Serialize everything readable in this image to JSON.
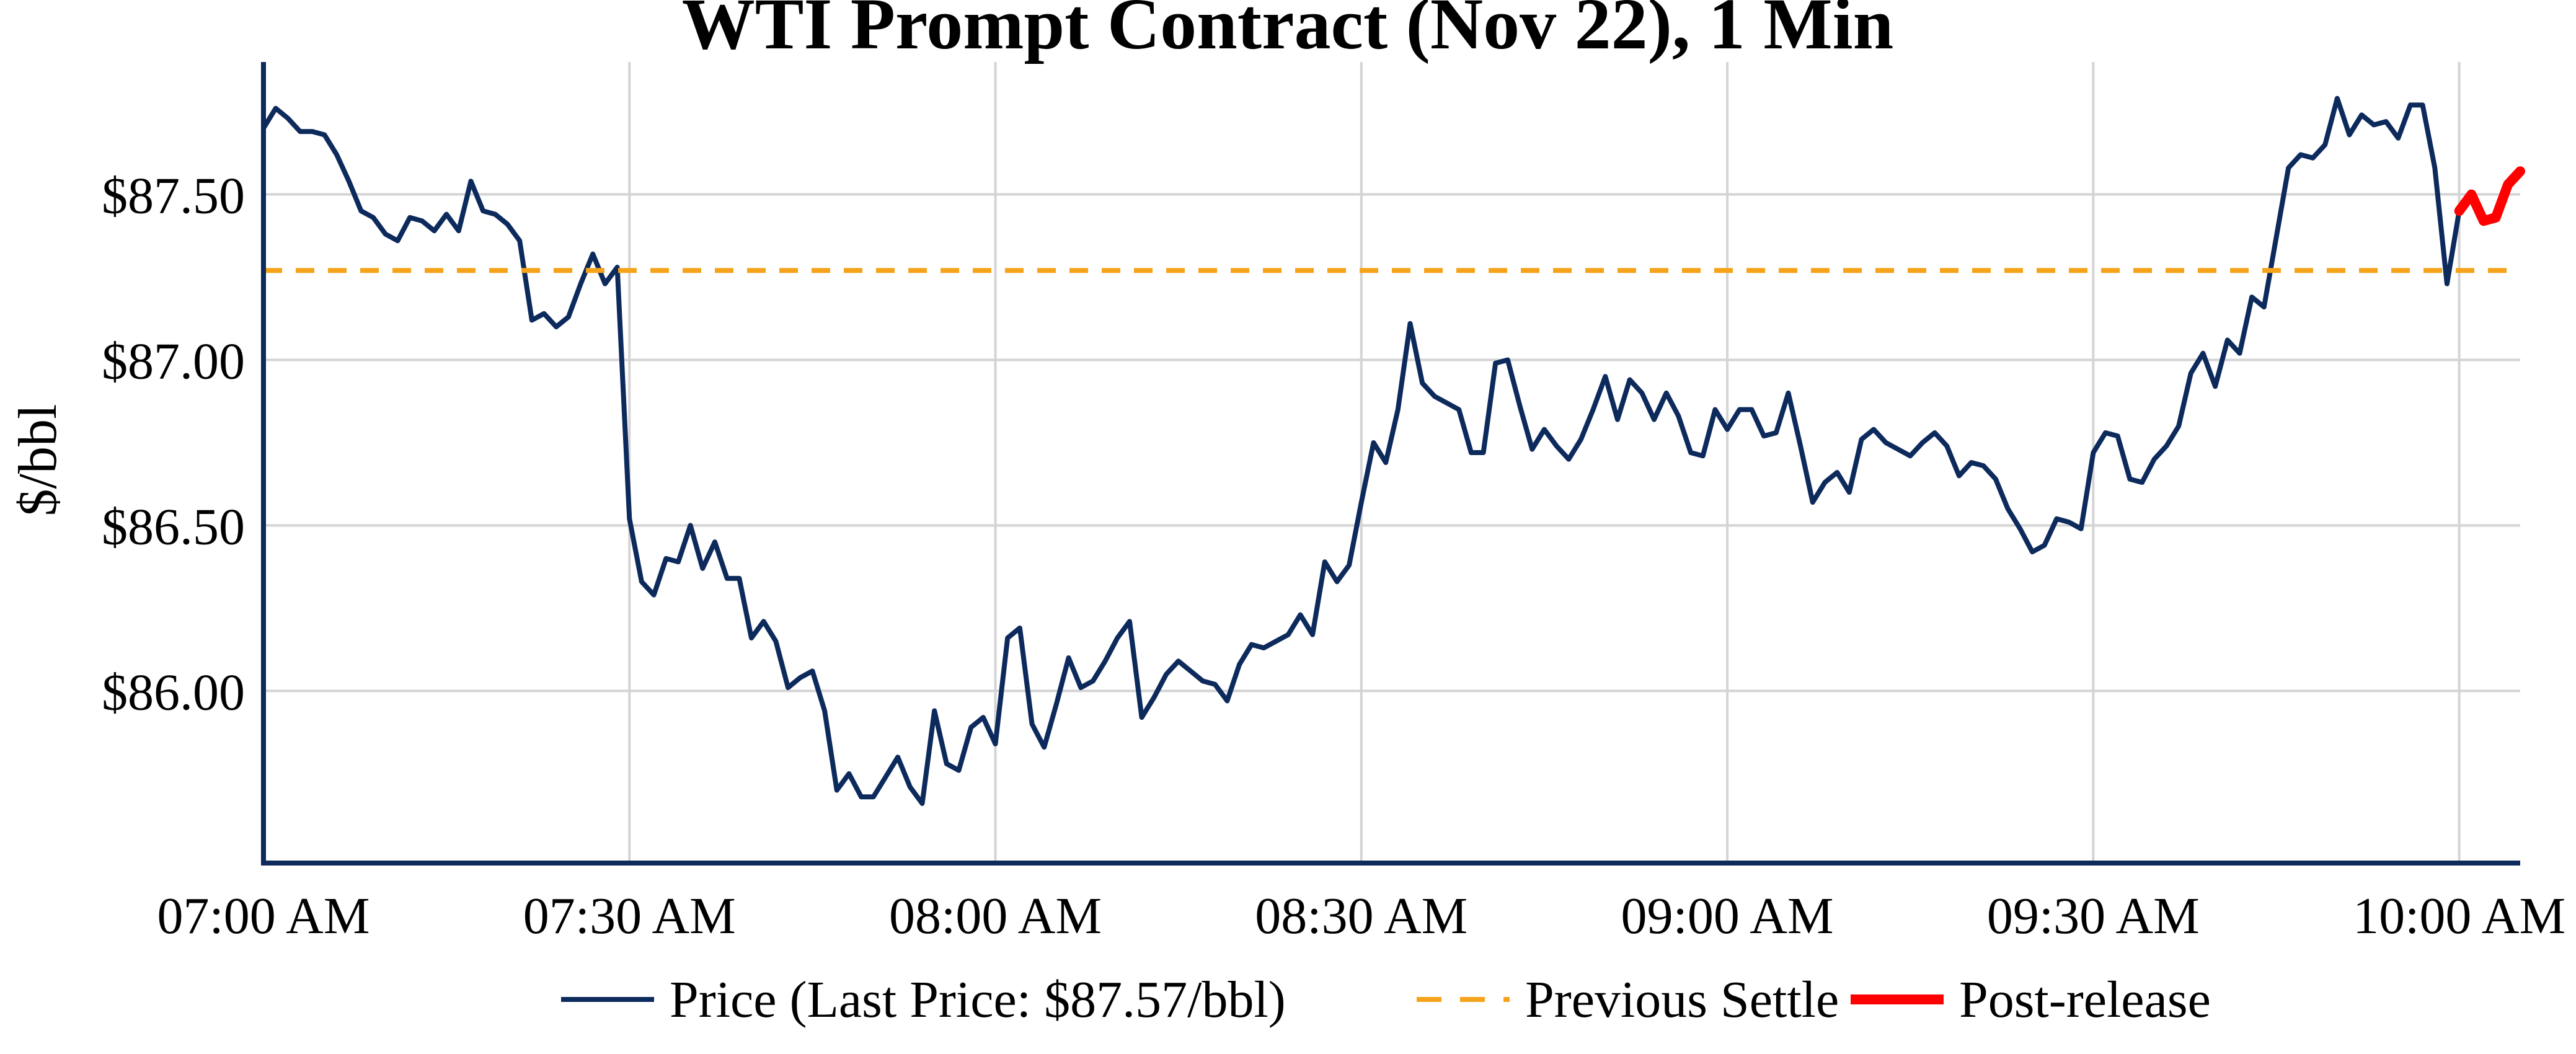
{
  "chart_data": {
    "type": "line",
    "title": "WTI Prompt Contract (Nov 22), 1 Min",
    "xlabel": "",
    "ylabel": "$/bbl",
    "x_range_minutes": [
      0,
      185
    ],
    "ylim": [
      85.48,
      87.9
    ],
    "x_ticks": [
      {
        "minute": 0,
        "label": "07:00 AM"
      },
      {
        "minute": 30,
        "label": "07:30 AM"
      },
      {
        "minute": 60,
        "label": "08:00 AM"
      },
      {
        "minute": 90,
        "label": "08:30 AM"
      },
      {
        "minute": 120,
        "label": "09:00 AM"
      },
      {
        "minute": 150,
        "label": "09:30 AM"
      },
      {
        "minute": 180,
        "label": "10:00 AM"
      }
    ],
    "y_ticks": [
      {
        "value": 86.0,
        "label": "$86.00"
      },
      {
        "value": 86.5,
        "label": "$86.50"
      },
      {
        "value": 87.0,
        "label": "$87.00"
      },
      {
        "value": 87.5,
        "label": "$87.50"
      }
    ],
    "grid": true,
    "legend_position": "bottom-center",
    "series": [
      {
        "name": "Price (Last Price: $87.57/bbl)",
        "color": "#0d2a5c",
        "style": "solid",
        "x_minutes": [
          0,
          1,
          2,
          3,
          4,
          5,
          6,
          7,
          8,
          9,
          10,
          11,
          12,
          13,
          14,
          15,
          16,
          17,
          18,
          19,
          20,
          21,
          22,
          23,
          24,
          25,
          26,
          27,
          28,
          29,
          30,
          31,
          32,
          33,
          34,
          35,
          36,
          37,
          38,
          39,
          40,
          41,
          42,
          43,
          44,
          45,
          46,
          47,
          48,
          49,
          50,
          51,
          52,
          53,
          54,
          55,
          56,
          57,
          58,
          59,
          60,
          61,
          62,
          63,
          64,
          65,
          66,
          67,
          68,
          69,
          70,
          71,
          72,
          73,
          74,
          75,
          76,
          77,
          78,
          79,
          80,
          81,
          82,
          83,
          84,
          85,
          86,
          87,
          88,
          89,
          90,
          91,
          92,
          93,
          94,
          95,
          96,
          97,
          98,
          99,
          100,
          101,
          102,
          103,
          104,
          105,
          106,
          107,
          108,
          109,
          110,
          111,
          112,
          113,
          114,
          115,
          116,
          117,
          118,
          119,
          120,
          121,
          122,
          123,
          124,
          125,
          126,
          127,
          128,
          129,
          130,
          131,
          132,
          133,
          134,
          135,
          136,
          137,
          138,
          139,
          140,
          141,
          142,
          143,
          144,
          145,
          146,
          147,
          148,
          149,
          150,
          151,
          152,
          153,
          154,
          155,
          156,
          157,
          158,
          159,
          160,
          161,
          162,
          163,
          164,
          165,
          166,
          167,
          168,
          169,
          170,
          171,
          172,
          173,
          174,
          175,
          176,
          177,
          178,
          179,
          180
        ],
        "values": [
          87.7,
          87.76,
          87.73,
          87.69,
          87.69,
          87.68,
          87.62,
          87.54,
          87.45,
          87.43,
          87.38,
          87.36,
          87.43,
          87.42,
          87.39,
          87.44,
          87.39,
          87.54,
          87.45,
          87.44,
          87.41,
          87.36,
          87.12,
          87.14,
          87.1,
          87.13,
          87.23,
          87.32,
          87.23,
          87.28,
          86.52,
          86.33,
          86.29,
          86.4,
          86.39,
          86.5,
          86.37,
          86.45,
          86.34,
          86.34,
          86.16,
          86.21,
          86.15,
          86.01,
          86.04,
          86.06,
          85.94,
          85.7,
          85.75,
          85.68,
          85.68,
          85.74,
          85.8,
          85.71,
          85.66,
          85.94,
          85.78,
          85.76,
          85.89,
          85.92,
          85.84,
          86.16,
          86.19,
          85.9,
          85.83,
          85.96,
          86.1,
          86.01,
          86.03,
          86.09,
          86.16,
          86.21,
          85.92,
          85.98,
          86.05,
          86.09,
          86.06,
          86.03,
          86.02,
          85.97,
          86.08,
          86.14,
          86.13,
          86.15,
          86.17,
          86.23,
          86.17,
          86.39,
          86.33,
          86.38,
          86.57,
          86.75,
          86.69,
          86.85,
          87.11,
          86.93,
          86.89,
          86.87,
          86.85,
          86.72,
          86.72,
          86.99,
          87.0,
          86.86,
          86.73,
          86.79,
          86.74,
          86.7,
          86.76,
          86.85,
          86.95,
          86.82,
          86.94,
          86.9,
          86.82,
          86.9,
          86.83,
          86.72,
          86.71,
          86.85,
          86.79,
          86.85,
          86.85,
          86.77,
          86.78,
          86.9,
          86.74,
          86.57,
          86.63,
          86.66,
          86.6,
          86.76,
          86.79,
          86.75,
          86.73,
          86.71,
          86.75,
          86.78,
          86.74,
          86.65,
          86.69,
          86.68,
          86.64,
          86.55,
          86.49,
          86.42,
          86.44,
          86.52,
          86.51,
          86.49,
          86.72,
          86.78,
          86.77,
          86.64,
          86.63,
          86.7,
          86.74,
          86.8,
          86.96,
          87.02,
          86.92,
          87.06,
          87.02,
          87.19,
          87.16,
          87.37,
          87.58,
          87.62,
          87.61,
          87.65,
          87.79,
          87.68,
          87.74,
          87.71,
          87.72,
          87.67,
          87.77,
          87.77,
          87.58,
          87.23,
          87.45
        ]
      },
      {
        "name": "Previous Settle",
        "color": "#f5a31a",
        "style": "dashed",
        "x_minutes": [
          0,
          185
        ],
        "values": [
          87.27,
          87.27
        ]
      },
      {
        "name": "Post-release",
        "color": "#ff0000",
        "style": "solid",
        "x_minutes": [
          180,
          181,
          182,
          183,
          184,
          185
        ],
        "values": [
          87.45,
          87.5,
          87.42,
          87.43,
          87.53,
          87.57
        ]
      }
    ]
  }
}
